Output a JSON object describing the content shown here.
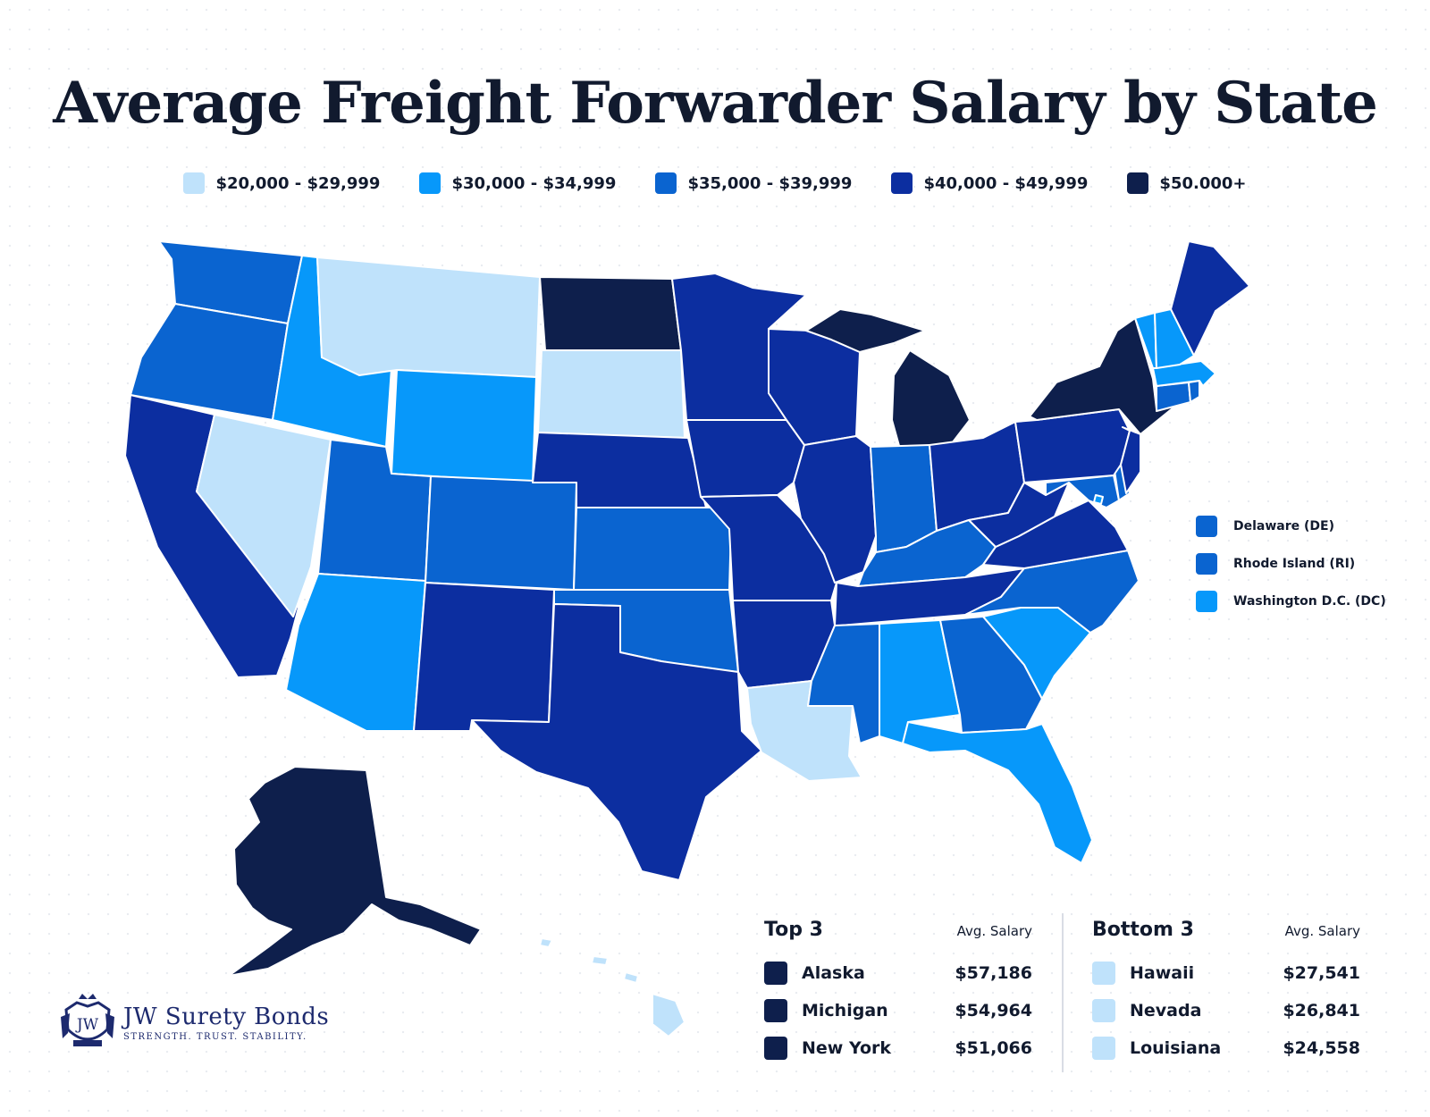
{
  "title": "Average Freight Forwarder Salary by State",
  "legend": [
    {
      "label": "$20,000 - $29,999",
      "color": "#bfe2fb"
    },
    {
      "label": "$30,000 - $34,999",
      "color": "#0798fa"
    },
    {
      "label": "$35,000 - $39,999",
      "color": "#0a64d0"
    },
    {
      "label": "$40,000 - $49,999",
      "color": "#0c2ea0"
    },
    {
      "label": "$50.000+",
      "color": "#0e1f4c"
    }
  ],
  "small_states": [
    {
      "label": "Delaware (DE)",
      "tier": 2
    },
    {
      "label": "Rhode Island (RI)",
      "tier": 2
    },
    {
      "label": "Washington D.C. (DC)",
      "tier": 1
    }
  ],
  "top3": {
    "title": "Top 3",
    "subtitle": "Avg. Salary",
    "rows": [
      {
        "state": "Alaska",
        "salary": "$57,186",
        "tier": 4
      },
      {
        "state": "Michigan",
        "salary": "$54,964",
        "tier": 4
      },
      {
        "state": "New York",
        "salary": "$51,066",
        "tier": 4
      }
    ]
  },
  "bottom3": {
    "title": "Bottom 3",
    "subtitle": "Avg. Salary",
    "rows": [
      {
        "state": "Hawaii",
        "salary": "$27,541",
        "tier": 0
      },
      {
        "state": "Nevada",
        "salary": "$26,841",
        "tier": 0
      },
      {
        "state": "Louisiana",
        "salary": "$24,558",
        "tier": 0
      }
    ]
  },
  "brand": {
    "monogram": "JW",
    "name": "JW Surety Bonds",
    "tagline": "STRENGTH. TRUST. STABILITY."
  },
  "state_tiers": {
    "WA": 2,
    "OR": 2,
    "CA": 3,
    "ID": 1,
    "NV": 0,
    "MT": 0,
    "WY": 1,
    "UT": 2,
    "AZ": 1,
    "CO": 2,
    "NM": 3,
    "ND": 4,
    "SD": 0,
    "NE": 3,
    "KS": 2,
    "OK": 2,
    "TX": 3,
    "MN": 3,
    "IA": 3,
    "MO": 3,
    "AR": 3,
    "LA": 0,
    "WI": 3,
    "IL": 3,
    "MI": 4,
    "MI_UP": 4,
    "IN": 2,
    "OH": 3,
    "KY": 2,
    "TN": 3,
    "MS": 2,
    "AL": 1,
    "GA": 2,
    "FL": 1,
    "SC": 1,
    "NC": 2,
    "VA": 3,
    "WV": 3,
    "MD": 2,
    "DE": 2,
    "DC": 1,
    "PA": 3,
    "NJ": 3,
    "NY": 4,
    "CT": 2,
    "RI": 2,
    "MA": 1,
    "VT": 1,
    "NH": 1,
    "ME": 3,
    "AK": 4,
    "HI": 0
  }
}
